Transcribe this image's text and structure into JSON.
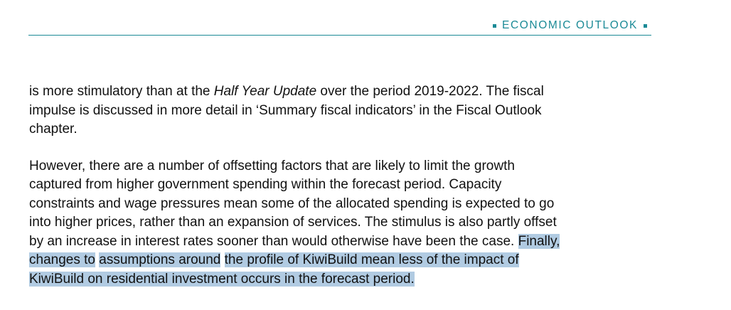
{
  "header": {
    "section_label": "ECONOMIC OUTLOOK"
  },
  "body": {
    "p1": {
      "line1_pre": "is more stimulatory than at the ",
      "line1_em": "Half Year Update",
      "line1_post": " over the period 2019-2022. The fiscal",
      "line2": "impulse is discussed in more detail in ‘Summary fiscal indicators’ in the Fiscal Outlook",
      "line3": "chapter."
    },
    "p2": {
      "line1": "However, there are a number of offsetting factors that are likely to limit the growth",
      "line2": "captured from higher government spending within the forecast period. Capacity",
      "line3": "constraints and wage pressures mean some of the allocated spending is expected to go",
      "line4": "into higher prices, rather than an expansion of services. The stimulus is also partly offset",
      "line5_plain": "by an increase in interest rates sooner than would otherwise have been the case. ",
      "line5_hl": "Finally,",
      "line6_a": "changes to",
      "line6_b": "assumptions around",
      "line6_c": "the profile of KiwiBuild mean less of the impact of",
      "line7_hl": "KiwiBuild on residential investment occurs in the forecast period."
    }
  },
  "colors": {
    "header_accent": "#1b8a96",
    "selection_highlight": "#b1cbe2"
  }
}
